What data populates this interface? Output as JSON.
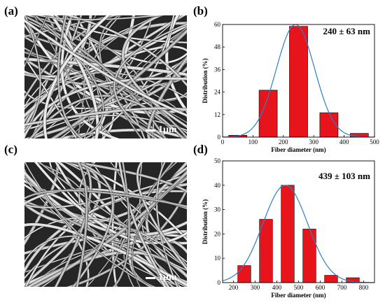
{
  "panels": {
    "a": {
      "label": "(a)",
      "scale_bar": "1μm"
    },
    "b": {
      "label": "(b)"
    },
    "c": {
      "label": "(c)",
      "scale_bar": "1μm"
    },
    "d": {
      "label": "(d)"
    }
  },
  "chart_data": [
    {
      "id": "b",
      "type": "bar",
      "annotation": "240 ± 63 nm",
      "xlabel": "Fiber diameter (nm)",
      "ylabel": "Distribution (%)",
      "xlim": [
        0,
        500
      ],
      "ylim": [
        0,
        60
      ],
      "xticks": [
        0,
        100,
        200,
        300,
        400,
        500
      ],
      "yticks": [
        0,
        12,
        24,
        36,
        48,
        60
      ],
      "bin_width": 60,
      "bars": [
        {
          "x": 50,
          "value": 1
        },
        {
          "x": 150,
          "value": 25
        },
        {
          "x": 250,
          "value": 59
        },
        {
          "x": 350,
          "value": 13
        },
        {
          "x": 450,
          "value": 2
        }
      ],
      "fit": {
        "type": "gaussian",
        "mean": 240,
        "sd": 63,
        "peak": 60
      },
      "bar_color": "#e8141b",
      "fit_color": "#2f7ec4",
      "grid": false
    },
    {
      "id": "d",
      "type": "bar",
      "annotation": "439 ± 103 nm",
      "xlabel": "Fiber diameter (nm)",
      "ylabel": "Distribution (%)",
      "xlim": [
        150,
        850
      ],
      "ylim": [
        0,
        50
      ],
      "xticks": [
        200,
        300,
        400,
        500,
        600,
        700,
        800
      ],
      "yticks": [
        0,
        10,
        20,
        30,
        40,
        50
      ],
      "bin_width": 60,
      "bars": [
        {
          "x": 250,
          "value": 7
        },
        {
          "x": 350,
          "value": 26
        },
        {
          "x": 450,
          "value": 40
        },
        {
          "x": 550,
          "value": 22
        },
        {
          "x": 650,
          "value": 3
        },
        {
          "x": 750,
          "value": 2
        }
      ],
      "fit": {
        "type": "gaussian",
        "mean": 439,
        "sd": 103,
        "peak": 40
      },
      "bar_color": "#e8141b",
      "fit_color": "#2f7ec4",
      "grid": false
    }
  ]
}
